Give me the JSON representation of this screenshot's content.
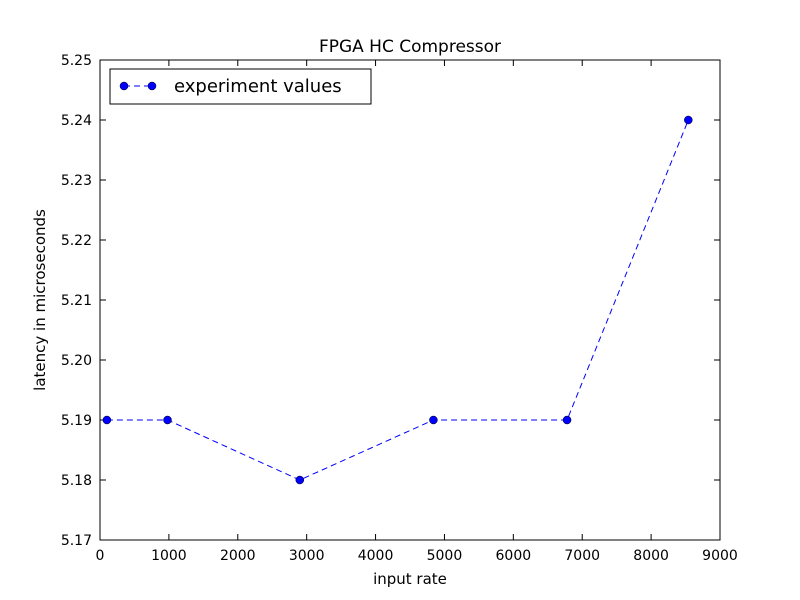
{
  "chart_data": {
    "type": "line",
    "title": "FPGA HC Compressor",
    "xlabel": "input rate",
    "ylabel": "latency in microseconds",
    "xlim": [
      0,
      9000
    ],
    "ylim": [
      5.17,
      5.25
    ],
    "x_ticks": [
      "0",
      "1000",
      "2000",
      "3000",
      "4000",
      "5000",
      "6000",
      "7000",
      "8000",
      "9000"
    ],
    "y_ticks": [
      "5.17",
      "5.18",
      "5.19",
      "5.20",
      "5.21",
      "5.22",
      "5.23",
      "5.24",
      "5.25"
    ],
    "grid": false,
    "legend_position": "top-left",
    "series": [
      {
        "name": "experiment values",
        "color": "#0000ff",
        "line_style": "dashed",
        "marker": "circle",
        "x": [
          100,
          980,
          2900,
          4840,
          6780,
          8540
        ],
        "y": [
          5.19,
          5.19,
          5.18,
          5.19,
          5.19,
          5.24
        ]
      }
    ]
  }
}
